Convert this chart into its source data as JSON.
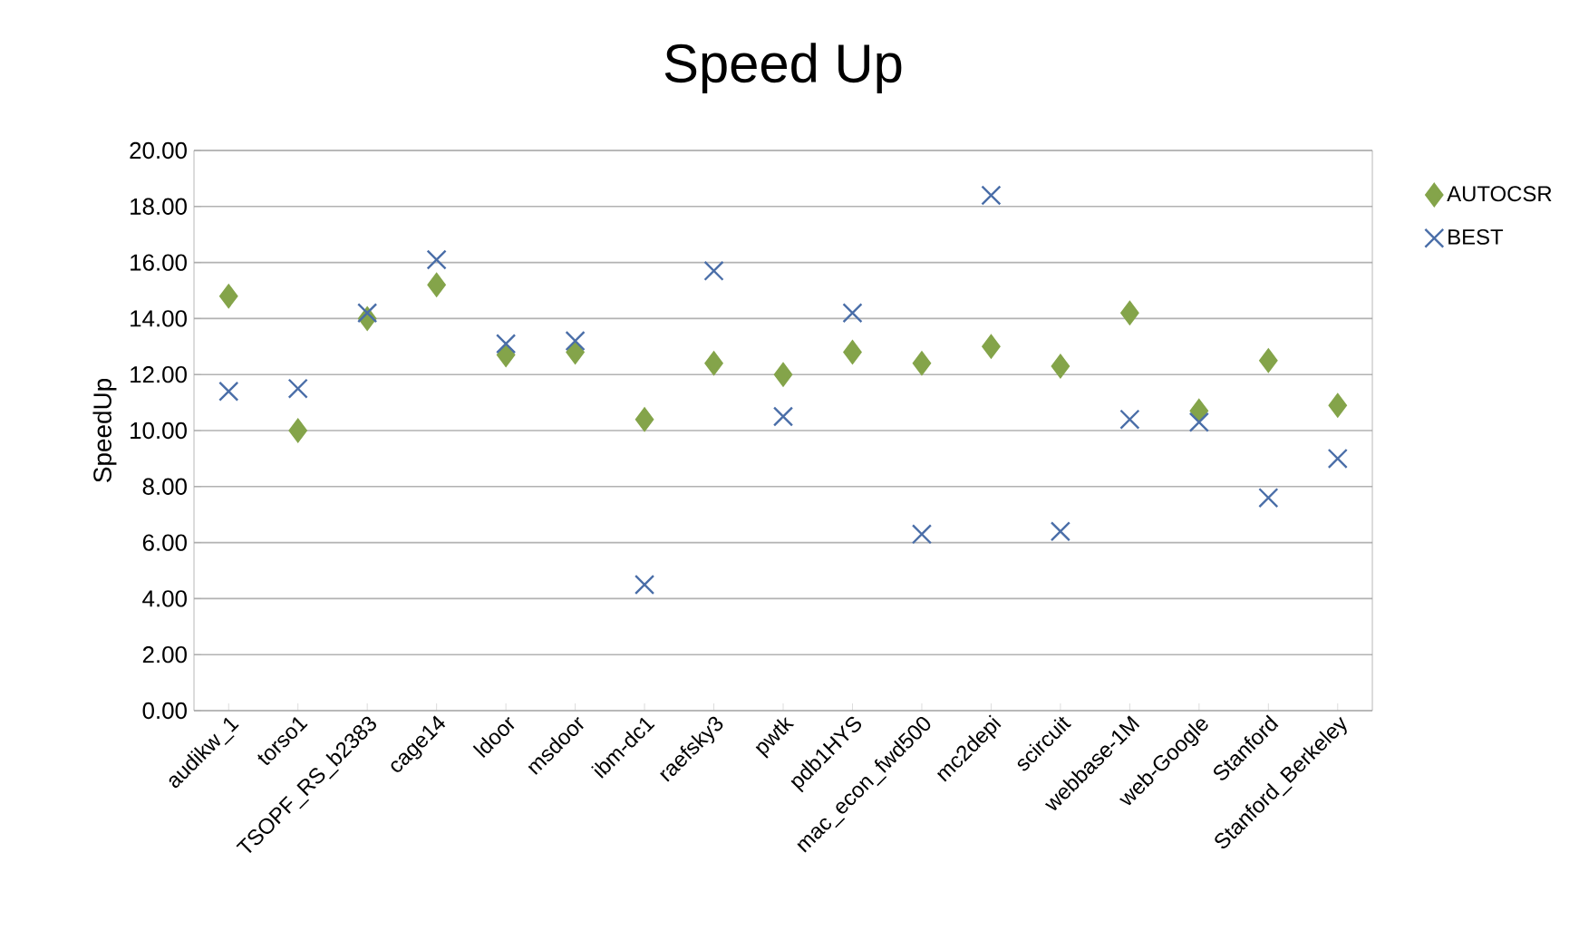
{
  "chart_data": {
    "type": "scatter",
    "title": "Speed Up",
    "ylabel": "SpeedUp",
    "categories": [
      "audikw_1",
      "torso1",
      "TSOPF_RS_b2383",
      "cage14",
      "ldoor",
      "msdoor",
      "ibm-dc1",
      "raefsky3",
      "pwtk",
      "pdb1HYS",
      "mac_econ_fwd500",
      "mc2depi",
      "scircuit",
      "webbase-1M",
      "web-Google",
      "Stanford",
      "Stanford_Berkeley"
    ],
    "series": [
      {
        "name": "AUTOCSR",
        "color": "#84a44a",
        "marker": "diamond",
        "values": [
          14.8,
          10.0,
          14.0,
          15.2,
          12.7,
          12.8,
          10.4,
          12.4,
          12.0,
          12.8,
          12.4,
          13.0,
          12.3,
          14.2,
          10.7,
          12.5,
          10.9
        ]
      },
      {
        "name": "BEST",
        "color": "#4a6ea8",
        "marker": "cross",
        "values": [
          11.4,
          11.5,
          14.2,
          16.1,
          13.1,
          13.2,
          4.5,
          15.7,
          10.5,
          14.2,
          6.3,
          18.4,
          6.4,
          10.4,
          10.3,
          7.6,
          9.0
        ]
      }
    ],
    "ylim": [
      0,
      20
    ],
    "yticks": [
      {
        "value": 0,
        "label": "0.00"
      },
      {
        "value": 2,
        "label": "2.00"
      },
      {
        "value": 4,
        "label": "4.00"
      },
      {
        "value": 6,
        "label": "6.00"
      },
      {
        "value": 8,
        "label": "8.00"
      },
      {
        "value": 10,
        "label": "10.00"
      },
      {
        "value": 12,
        "label": "12.00"
      },
      {
        "value": 14,
        "label": "14.00"
      },
      {
        "value": 16,
        "label": "16.00"
      },
      {
        "value": 18,
        "label": "18.00"
      },
      {
        "value": 20,
        "label": "20.00"
      }
    ],
    "grid": "y",
    "legend": "right"
  }
}
